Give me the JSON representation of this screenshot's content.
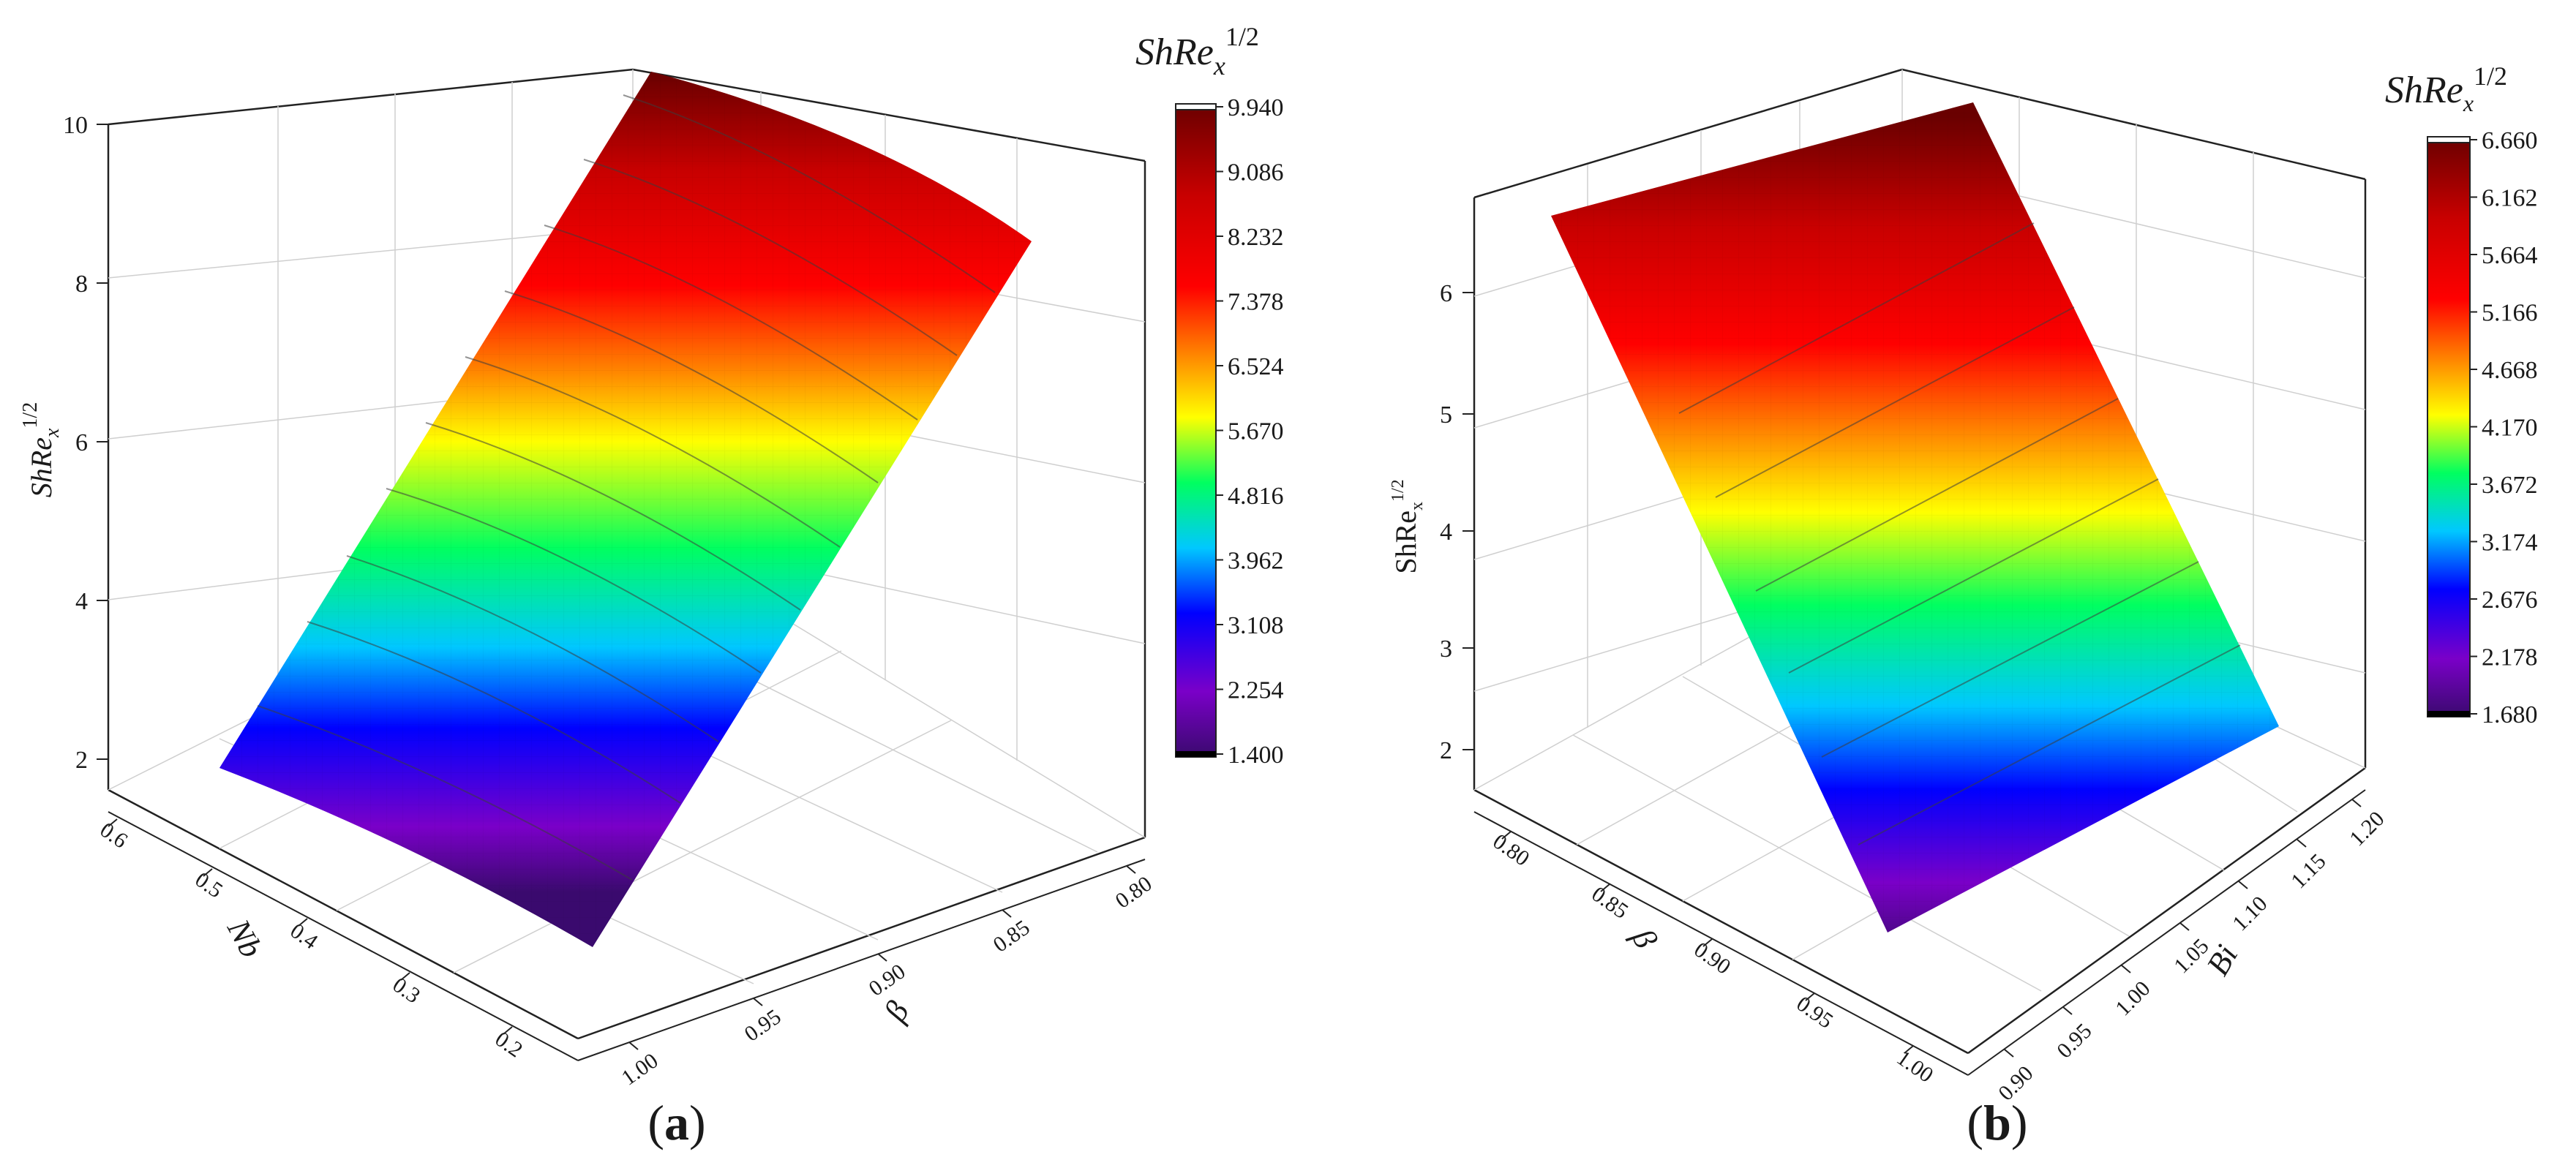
{
  "figure": {
    "panels": [
      {
        "label_letter": "a",
        "label_open": "(",
        "label_close": ")",
        "colorbar": {
          "title": {
            "base": "ShRe",
            "sub": "x",
            "sup": "1/2"
          },
          "ticks": [
            "9.940",
            "9.086",
            "8.232",
            "7.378",
            "6.524",
            "5.670",
            "4.816",
            "3.962",
            "3.108",
            "2.254",
            "1.400"
          ]
        },
        "z_axis": {
          "title": {
            "base": "ShRe",
            "sub": "x",
            "sup": "1/2"
          },
          "ticks": [
            "10",
            "8",
            "6",
            "4",
            "2"
          ]
        },
        "left_axis": {
          "symbol": "Nb",
          "ticks": [
            "0.6",
            "0.5",
            "0.4",
            "0.3",
            "0.2"
          ]
        },
        "right_axis": {
          "symbol": "β",
          "ticks": [
            "0.80",
            "0.85",
            "0.90",
            "0.95",
            "1.00"
          ]
        }
      },
      {
        "label_letter": "b",
        "label_open": "(",
        "label_close": ")",
        "colorbar": {
          "title": {
            "base": "ShRe",
            "sub": "x",
            "sup": "1/2"
          },
          "ticks": [
            "6.660",
            "6.162",
            "5.664",
            "5.166",
            "4.668",
            "4.170",
            "3.672",
            "3.174",
            "2.676",
            "2.178",
            "1.680"
          ]
        },
        "z_axis": {
          "title": {
            "base": "ShRe",
            "sub": "x",
            "sup": "1/2"
          },
          "ticks": [
            "6",
            "5",
            "4",
            "3",
            "2"
          ]
        },
        "left_axis": {
          "symbol": "β",
          "ticks": [
            "0.80",
            "0.85",
            "0.90",
            "0.95",
            "1.00"
          ]
        },
        "right_axis": {
          "symbol": "Bi",
          "ticks": [
            "0.90",
            "0.95",
            "1.00",
            "1.05",
            "1.10",
            "1.15",
            "1.20"
          ]
        }
      }
    ],
    "colors": {
      "palette": [
        "#3a0a6e",
        "#7a00c8",
        "#0000ff",
        "#00c8ff",
        "#00ff60",
        "#ffff00",
        "#ff8000",
        "#ff0000",
        "#c80000",
        "#6a0000"
      ]
    }
  },
  "chart_data": [
    {
      "type": "surface3d",
      "z_axis_label": "ShRe_x^(1/2)",
      "x_axis_label": "Nb",
      "y_axis_label": "β",
      "x": [
        0.2,
        0.6
      ],
      "y": [
        0.8,
        1.0
      ],
      "zlim": [
        1,
        10
      ],
      "colorbar_range": [
        1.4,
        9.94
      ],
      "corner_values": [
        {
          "x": 0.6,
          "y": 1.0,
          "z": 2.0
        },
        {
          "x": 0.2,
          "y": 1.0,
          "z": 1.4
        },
        {
          "x": 0.2,
          "y": 0.8,
          "z": 8.6
        },
        {
          "x": 0.6,
          "y": 0.8,
          "z": 9.94
        }
      ],
      "grid": true
    },
    {
      "type": "surface3d",
      "z_axis_label": "ShRe_x^(1/2)",
      "x_axis_label": "β",
      "y_axis_label": "Bi",
      "x": [
        0.8,
        1.0
      ],
      "y": [
        0.9,
        1.2
      ],
      "zlim": [
        1.7,
        6.8
      ],
      "colorbar_range": [
        1.68,
        6.66
      ],
      "corner_values": [
        {
          "x": 0.8,
          "y": 0.9,
          "z": 6.4
        },
        {
          "x": 0.8,
          "y": 1.2,
          "z": 6.66
        },
        {
          "x": 1.0,
          "y": 1.2,
          "z": 1.9
        },
        {
          "x": 1.0,
          "y": 0.9,
          "z": 1.68
        }
      ],
      "grid": true
    }
  ]
}
